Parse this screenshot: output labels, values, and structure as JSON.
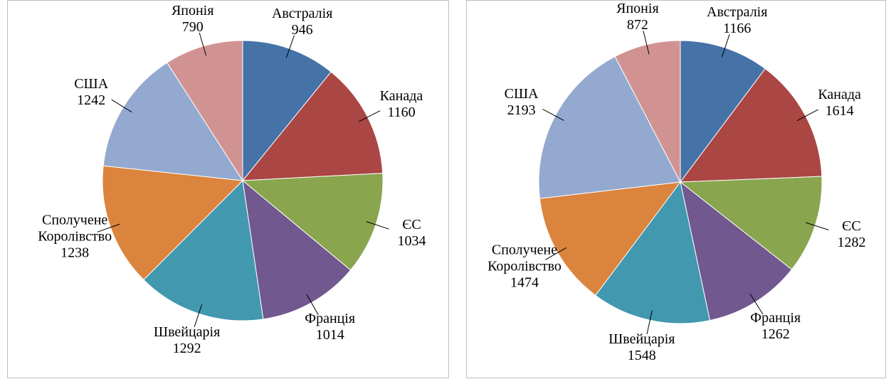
{
  "chart_data": [
    {
      "type": "pie",
      "categories": [
        "Австралія",
        "Канада",
        "ЄС",
        "Франція",
        "Швейцарія",
        "Сполучене Королівство",
        "США",
        "Японія"
      ],
      "values": [
        946,
        1160,
        1034,
        1014,
        1292,
        1238,
        1242,
        790
      ],
      "colors": [
        "#4572A7",
        "#AA4643",
        "#89A54E",
        "#71588F",
        "#4198AF",
        "#DB843D",
        "#93A9CF",
        "#D19392"
      ]
    },
    {
      "type": "pie",
      "categories": [
        "Австралія",
        "Канада",
        "ЄС",
        "Франція",
        "Швейцарія",
        "Сполучене Королівство",
        "США",
        "Японія"
      ],
      "values": [
        1166,
        1614,
        1282,
        1262,
        1548,
        1474,
        2193,
        872
      ],
      "colors": [
        "#4572A7",
        "#AA4643",
        "#89A54E",
        "#71588F",
        "#4198AF",
        "#DB843D",
        "#93A9CF",
        "#D19392"
      ]
    }
  ]
}
